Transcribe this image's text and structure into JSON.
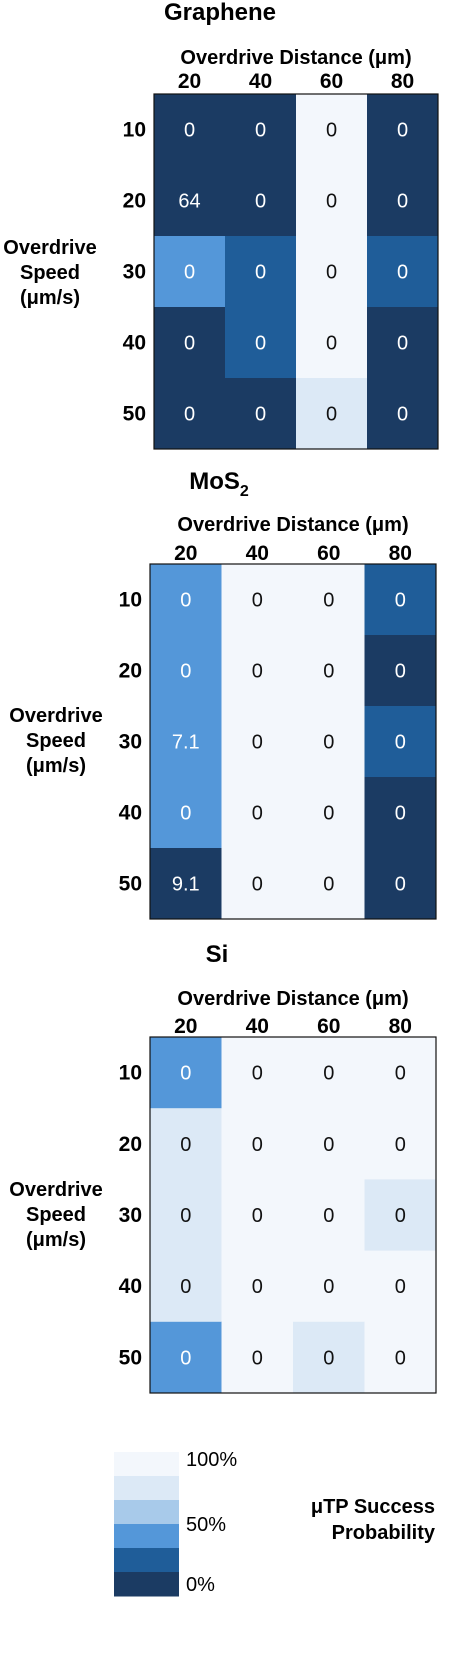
{
  "chart_data": [
    {
      "type": "heatmap",
      "title": "Graphene",
      "xlabel": "Overdrive Distance (μm)",
      "ylabel_lines": [
        "Overdrive",
        "Speed",
        "(μm/s)"
      ],
      "x": [
        "20",
        "40",
        "60",
        "80"
      ],
      "y": [
        "10",
        "20",
        "30",
        "40",
        "50"
      ],
      "values": [
        [
          0,
          0,
          100,
          0
        ],
        [
          0,
          0,
          100,
          0
        ],
        [
          50,
          25,
          100,
          25
        ],
        [
          0,
          25,
          100,
          0
        ],
        [
          0,
          0,
          75,
          0
        ]
      ],
      "labels": [
        [
          "0",
          "0",
          "0",
          "0"
        ],
        [
          "64",
          "0",
          "0",
          "0"
        ],
        [
          "0",
          "0",
          "0",
          "0"
        ],
        [
          "0",
          "0",
          "0",
          "0"
        ],
        [
          "0",
          "0",
          "0",
          "0"
        ]
      ]
    },
    {
      "type": "heatmap",
      "title": "MoS",
      "title_subscript": "2",
      "xlabel": "Overdrive Distance (μm)",
      "ylabel_lines": [
        "Overdrive",
        "Speed",
        "(μm/s)"
      ],
      "x": [
        "20",
        "40",
        "60",
        "80"
      ],
      "y": [
        "10",
        "20",
        "30",
        "40",
        "50"
      ],
      "values": [
        [
          50,
          100,
          100,
          25
        ],
        [
          50,
          100,
          100,
          0
        ],
        [
          50,
          100,
          100,
          25
        ],
        [
          50,
          100,
          100,
          0
        ],
        [
          0,
          100,
          100,
          0
        ]
      ],
      "labels": [
        [
          "0",
          "0",
          "0",
          "0"
        ],
        [
          "0",
          "0",
          "0",
          "0"
        ],
        [
          "7.1",
          "0",
          "0",
          "0"
        ],
        [
          "0",
          "0",
          "0",
          "0"
        ],
        [
          "9.1",
          "0",
          "0",
          "0"
        ]
      ]
    },
    {
      "type": "heatmap",
      "title": "Si",
      "xlabel": "Overdrive Distance (μm)",
      "ylabel_lines": [
        "Overdrive",
        "Speed",
        "(μm/s)"
      ],
      "x": [
        "20",
        "40",
        "60",
        "80"
      ],
      "y": [
        "10",
        "20",
        "30",
        "40",
        "50"
      ],
      "values": [
        [
          50,
          100,
          100,
          100
        ],
        [
          75,
          100,
          100,
          100
        ],
        [
          75,
          100,
          100,
          75
        ],
        [
          75,
          100,
          100,
          100
        ],
        [
          50,
          100,
          75,
          100
        ]
      ],
      "labels": [
        [
          "0",
          "0",
          "0",
          "0"
        ],
        [
          "0",
          "0",
          "0",
          "0"
        ],
        [
          "0",
          "0",
          "0",
          "0"
        ],
        [
          "0",
          "0",
          "0",
          "0"
        ],
        [
          "0",
          "0",
          "0",
          "0"
        ]
      ]
    }
  ],
  "legend": {
    "title_lines": [
      "μTP Success",
      "Probability"
    ],
    "ticks": [
      "100%",
      "50%",
      "0%"
    ],
    "steps": [
      100,
      75,
      62.5,
      50,
      25,
      0
    ],
    "colors": [
      "#f3f7fc",
      "#dce9f6",
      "#a8caea",
      "#5497d9",
      "#1f5d99",
      "#1b3b63"
    ]
  },
  "colors": {
    "100": "#f3f7fc",
    "75": "#dce9f6",
    "62.5": "#a8caea",
    "50": "#5497d9",
    "25": "#1f5d99",
    "0": "#1b3b63"
  }
}
